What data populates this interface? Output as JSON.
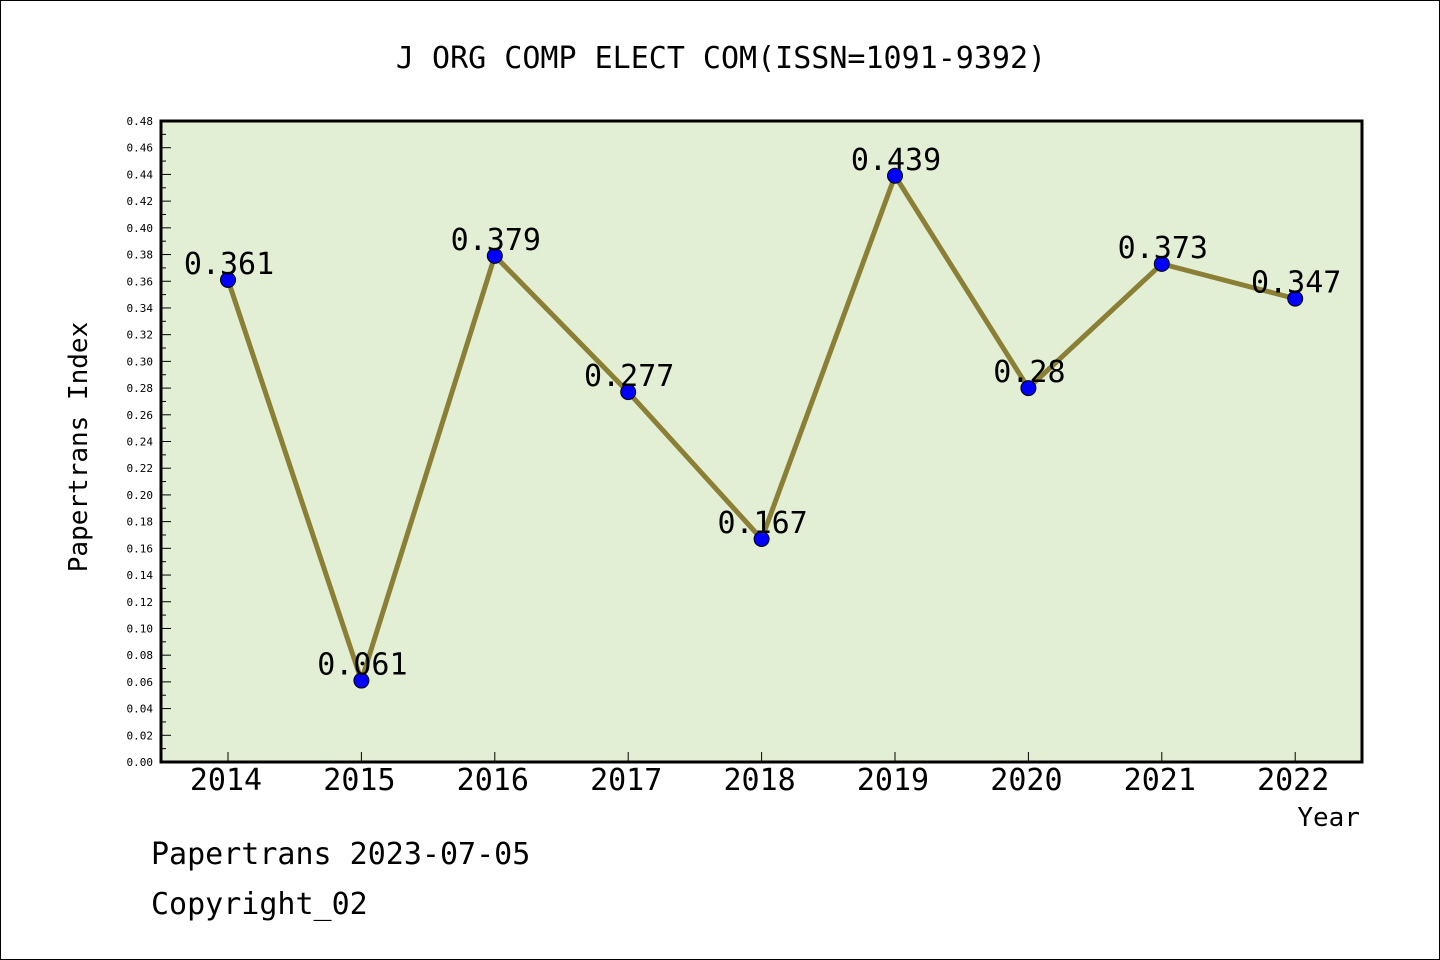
{
  "chart_data": {
    "type": "line",
    "title": "J ORG COMP ELECT COM(ISSN=1091-9392)",
    "xlabel": "Year",
    "ylabel": "Papertrans Index",
    "categories": [
      "2014",
      "2015",
      "2016",
      "2017",
      "2018",
      "2019",
      "2020",
      "2021",
      "2022"
    ],
    "series": [
      {
        "values": [
          0.361,
          0.061,
          0.379,
          0.277,
          0.167,
          0.439,
          0.28,
          0.373,
          0.347
        ],
        "labels": [
          "0.361",
          "0.061",
          "0.379",
          "0.277",
          "0.167",
          "0.439",
          "0.28",
          "0.373",
          "0.347"
        ]
      }
    ],
    "ylim": [
      0,
      0.48
    ],
    "yticks": [
      "0.00",
      "0.02",
      "0.04",
      "0.06",
      "0.08",
      "0.10",
      "0.12",
      "0.14",
      "0.16",
      "0.18",
      "0.20",
      "0.22",
      "0.24",
      "0.26",
      "0.28",
      "0.30",
      "0.32",
      "0.34",
      "0.36",
      "0.38",
      "0.40",
      "0.42",
      "0.44",
      "0.46",
      "0.48"
    ],
    "grid": false,
    "colors": {
      "plot_background": "#e2efd5",
      "line": "#8b7f35",
      "marker": "#0000ff"
    }
  },
  "footer": {
    "source": "Papertrans 2023-07-05",
    "copyright": "Copyright_02"
  }
}
